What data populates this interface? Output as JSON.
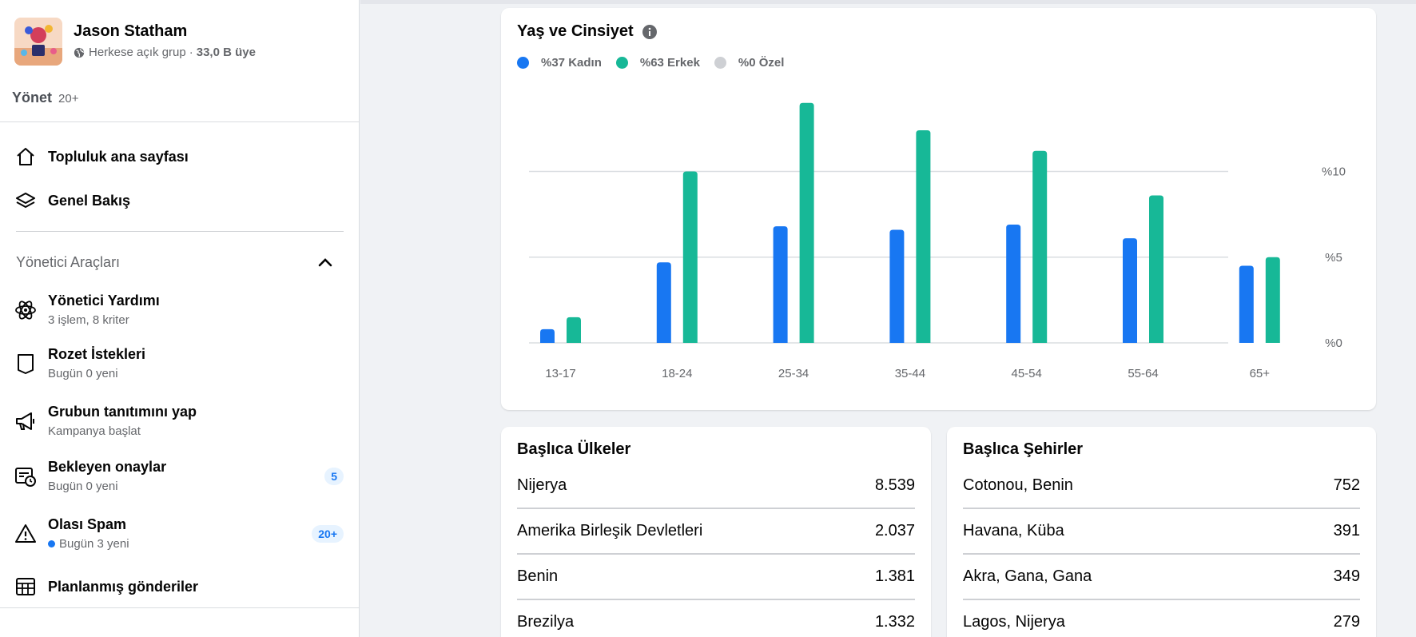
{
  "group": {
    "name": "Jason Statham",
    "privacy": "Herkese açık grup",
    "separator": "·",
    "members": "33,0 B üye"
  },
  "manage": {
    "title": "Yönet",
    "count": "20+"
  },
  "nav": {
    "community_home": "Topluluk ana sayfası",
    "overview": "Genel Bakış"
  },
  "admin_tools": {
    "title": "Yönetici Araçları",
    "items": [
      {
        "label": "Yönetici Yardımı",
        "sub": "3 işlem, 8 kriter",
        "icon": "atom-icon"
      },
      {
        "label": "Rozet İstekleri",
        "sub": "Bugün 0 yeni",
        "icon": "badge-shield-icon"
      },
      {
        "label": "Grubun tanıtımını yap",
        "sub": "Kampanya başlat",
        "icon": "megaphone-icon"
      },
      {
        "label": "Bekleyen onaylar",
        "sub": "Bugün 0 yeni",
        "icon": "pending-clock-icon",
        "badge": "5"
      },
      {
        "label": "Olası Spam",
        "sub": "Bugün 3 yeni",
        "icon": "warning-icon",
        "badge": "20+"
      },
      {
        "label": "Planlanmış gönderiler",
        "icon": "calendar-grid-icon"
      }
    ]
  },
  "chart_title": "Yaş ve Cinsiyet",
  "legend": [
    {
      "label": "%37 Kadın",
      "color": "#1877f2"
    },
    {
      "label": "%63 Erkek",
      "color": "#17b897"
    },
    {
      "label": "%0 Özel",
      "color": "#ced0d4"
    }
  ],
  "chart_data": {
    "type": "bar",
    "title": "Yaş ve Cinsiyet",
    "categories": [
      "13-17",
      "18-24",
      "25-34",
      "35-44",
      "45-54",
      "55-64",
      "65+"
    ],
    "series": [
      {
        "name": "Kadın",
        "color": "#1877f2",
        "values": [
          0.8,
          4.7,
          6.8,
          6.6,
          6.9,
          6.1,
          4.5
        ]
      },
      {
        "name": "Erkek",
        "color": "#17b897",
        "values": [
          1.5,
          10.0,
          14.0,
          12.4,
          11.2,
          8.6,
          5.0
        ]
      }
    ],
    "y_ticks": [
      {
        "value": 0,
        "label": "%0"
      },
      {
        "value": 5,
        "label": "%5"
      },
      {
        "value": 10,
        "label": "%10"
      }
    ],
    "ylim": [
      0,
      14.5
    ],
    "grid": true,
    "y_axis_side": "right"
  },
  "top_countries": {
    "title": "Başlıca Ülkeler",
    "rows": [
      {
        "name": "Nijerya",
        "value": "8.539"
      },
      {
        "name": "Amerika Birleşik Devletleri",
        "value": "2.037"
      },
      {
        "name": "Benin",
        "value": "1.381"
      },
      {
        "name": "Brezilya",
        "value": "1.332"
      }
    ]
  },
  "top_cities": {
    "title": "Başlıca Şehirler",
    "rows": [
      {
        "name": "Cotonou, Benin",
        "value": "752"
      },
      {
        "name": "Havana, Küba",
        "value": "391"
      },
      {
        "name": "Akra, Gana, Gana",
        "value": "349"
      },
      {
        "name": "Lagos, Nijerya",
        "value": "279"
      }
    ]
  }
}
